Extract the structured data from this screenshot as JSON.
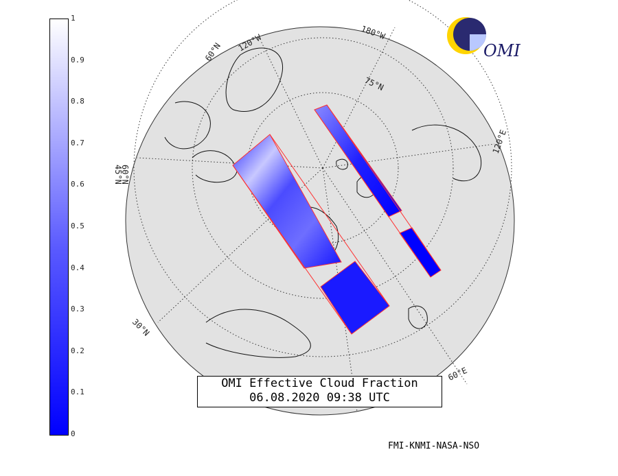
{
  "map": {
    "title": "OMI Effective Cloud Fraction",
    "datetime": "06.08.2020 09:38 UTC",
    "credit": "FMI-KNMI-NASA-NSO",
    "logo_text": "OMI",
    "projection": "polar stereographic",
    "colors": {
      "land": "#e2e2e2",
      "high": "#ffffff",
      "low": "#0000ff",
      "swath_edge": "#ff0000"
    }
  },
  "colorbar": {
    "ticks": [
      "1",
      "0.9",
      "0.8",
      "0.7",
      "0.6",
      "0.5",
      "0.4",
      "0.3",
      "0.2",
      "0.1",
      "0"
    ]
  },
  "graticule_labels": {
    "lat_60n": "60°N",
    "lat_75n": "75°N",
    "lat_30n": "30°N",
    "lat_45n": "45°N",
    "lon_120w": "120°W",
    "lon_180w": "180°W",
    "lon_120e": "120°E",
    "lon_60e": "60°E",
    "lat_60n_left": "60°N"
  }
}
